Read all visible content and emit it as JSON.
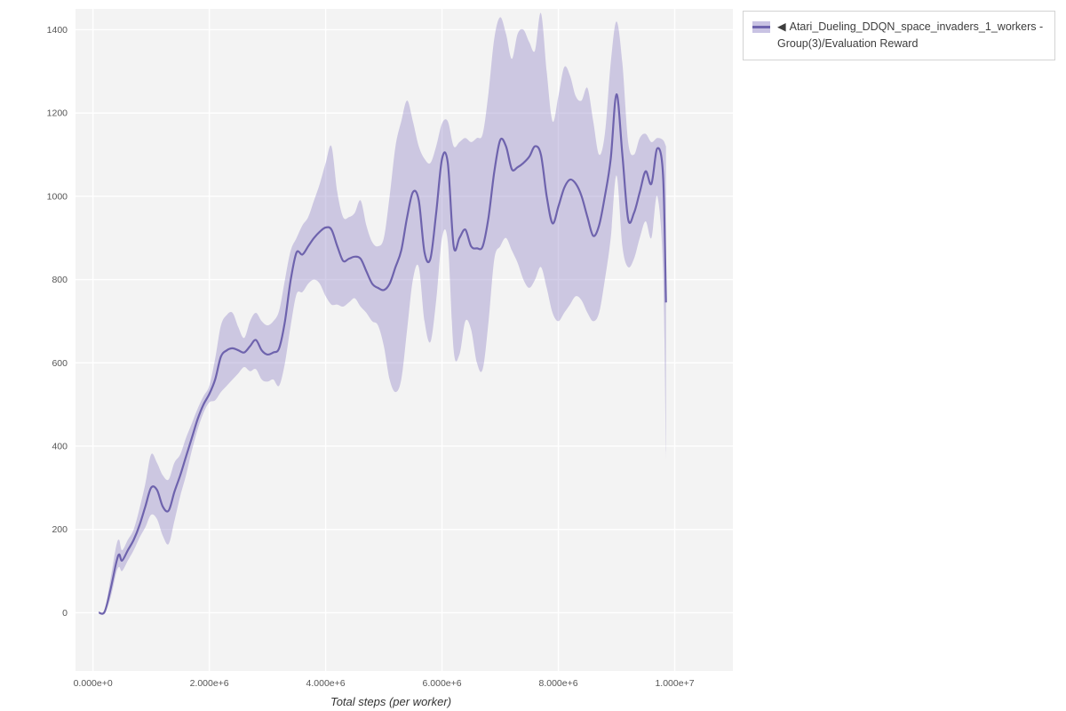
{
  "legend": {
    "marker": "◀",
    "label": "Atari_Dueling_DDQN_space_invaders_1_workers - Group(3)/Evaluation Reward"
  },
  "chart_data": {
    "type": "line",
    "title": "",
    "xlabel": "Total steps (per worker)",
    "ylabel": "",
    "x_unit": "millions of steps",
    "xlim": [
      -0.3,
      11.0
    ],
    "ylim": [
      -140,
      1450
    ],
    "grid": true,
    "legend_position": "top-right",
    "plot_bg": "#f3f3f3",
    "grid_color": "#ffffff",
    "x_ticks": [
      {
        "v": 0,
        "label": "0.000e+0"
      },
      {
        "v": 2,
        "label": "2.000e+6"
      },
      {
        "v": 4,
        "label": "4.000e+6"
      },
      {
        "v": 6,
        "label": "6.000e+6"
      },
      {
        "v": 8,
        "label": "8.000e+6"
      },
      {
        "v": 10,
        "label": "1.000e+7"
      }
    ],
    "y_ticks": [
      {
        "v": 0,
        "label": "0"
      },
      {
        "v": 200,
        "label": "200"
      },
      {
        "v": 400,
        "label": "400"
      },
      {
        "v": 600,
        "label": "600"
      },
      {
        "v": 800,
        "label": "800"
      },
      {
        "v": 1000,
        "label": "1000"
      },
      {
        "v": 1200,
        "label": "1200"
      },
      {
        "v": 1400,
        "label": "1400"
      }
    ],
    "series": [
      {
        "name": "Atari_Dueling_DDQN_space_invaders_1_workers - Group(3)/Evaluation Reward",
        "color": "#6e63ad",
        "band_color": "#8d82c4",
        "band_opacity": 0.38,
        "x": [
          0.1,
          0.2,
          0.3,
          0.4,
          0.45,
          0.5,
          0.6,
          0.7,
          0.8,
          0.9,
          1.0,
          1.1,
          1.2,
          1.3,
          1.4,
          1.5,
          1.6,
          1.7,
          1.8,
          1.9,
          2.0,
          2.1,
          2.2,
          2.3,
          2.4,
          2.5,
          2.6,
          2.7,
          2.8,
          2.9,
          3.0,
          3.1,
          3.2,
          3.3,
          3.4,
          3.5,
          3.6,
          3.7,
          3.8,
          3.9,
          4.0,
          4.1,
          4.2,
          4.3,
          4.4,
          4.5,
          4.6,
          4.7,
          4.8,
          4.9,
          5.0,
          5.1,
          5.2,
          5.3,
          5.4,
          5.5,
          5.6,
          5.7,
          5.8,
          5.9,
          6.0,
          6.1,
          6.2,
          6.3,
          6.4,
          6.5,
          6.6,
          6.7,
          6.8,
          6.9,
          7.0,
          7.1,
          7.2,
          7.3,
          7.4,
          7.5,
          7.6,
          7.7,
          7.8,
          7.9,
          8.0,
          8.1,
          8.2,
          8.3,
          8.4,
          8.5,
          8.6,
          8.7,
          8.8,
          8.9,
          9.0,
          9.1,
          9.2,
          9.3,
          9.4,
          9.5,
          9.6,
          9.7,
          9.8,
          9.85
        ],
        "mean": [
          0,
          2,
          55,
          120,
          140,
          125,
          150,
          175,
          210,
          255,
          300,
          295,
          255,
          245,
          290,
          330,
          375,
          420,
          465,
          500,
          525,
          560,
          615,
          630,
          635,
          630,
          625,
          640,
          655,
          630,
          620,
          625,
          635,
          700,
          800,
          865,
          860,
          880,
          900,
          915,
          925,
          920,
          880,
          845,
          850,
          855,
          850,
          820,
          790,
          780,
          775,
          790,
          830,
          870,
          950,
          1010,
          990,
          865,
          850,
          960,
          1090,
          1080,
          880,
          900,
          920,
          880,
          875,
          880,
          950,
          1060,
          1135,
          1120,
          1065,
          1070,
          1080,
          1095,
          1120,
          1100,
          1000,
          935,
          975,
          1020,
          1040,
          1030,
          1000,
          950,
          905,
          930,
          1000,
          1090,
          1245,
          1100,
          945,
          960,
          1010,
          1060,
          1030,
          1115,
          1050,
          745
        ],
        "lo": [
          0,
          0,
          35,
          95,
          110,
          100,
          125,
          150,
          180,
          205,
          235,
          225,
          185,
          165,
          220,
          280,
          330,
          390,
          440,
          480,
          505,
          510,
          530,
          545,
          560,
          575,
          590,
          580,
          585,
          560,
          555,
          560,
          545,
          600,
          690,
          765,
          770,
          790,
          800,
          790,
          760,
          740,
          740,
          735,
          745,
          755,
          735,
          720,
          700,
          690,
          640,
          560,
          530,
          560,
          680,
          800,
          830,
          700,
          650,
          750,
          900,
          890,
          630,
          620,
          700,
          680,
          600,
          585,
          700,
          850,
          880,
          900,
          870,
          840,
          800,
          780,
          800,
          830,
          780,
          720,
          700,
          720,
          740,
          760,
          750,
          720,
          700,
          720,
          800,
          900,
          1050,
          880,
          830,
          850,
          900,
          940,
          900,
          1000,
          820,
          370
        ],
        "hi": [
          0,
          5,
          80,
          160,
          175,
          150,
          175,
          200,
          250,
          310,
          380,
          360,
          330,
          320,
          360,
          380,
          420,
          455,
          490,
          520,
          545,
          610,
          690,
          715,
          720,
          685,
          660,
          700,
          720,
          700,
          690,
          700,
          725,
          800,
          870,
          900,
          930,
          950,
          990,
          1030,
          1080,
          1120,
          1010,
          950,
          950,
          960,
          990,
          930,
          890,
          880,
          900,
          1000,
          1120,
          1180,
          1230,
          1180,
          1120,
          1090,
          1080,
          1120,
          1175,
          1180,
          1120,
          1130,
          1140,
          1130,
          1140,
          1150,
          1250,
          1380,
          1430,
          1390,
          1330,
          1390,
          1400,
          1370,
          1350,
          1440,
          1300,
          1180,
          1240,
          1310,
          1290,
          1240,
          1230,
          1260,
          1180,
          1100,
          1150,
          1320,
          1420,
          1320,
          1130,
          1100,
          1140,
          1150,
          1130,
          1140,
          1135,
          1120
        ]
      }
    ]
  }
}
